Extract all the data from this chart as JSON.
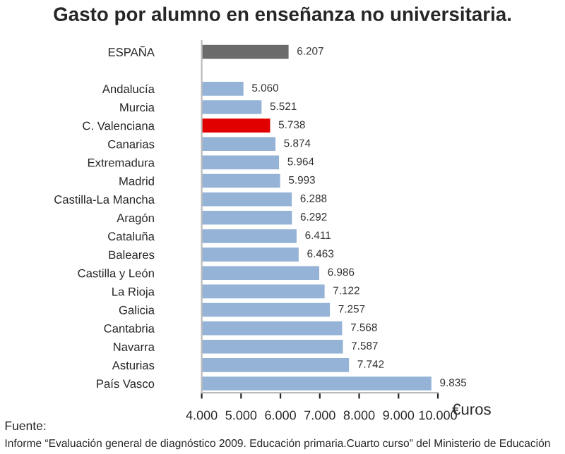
{
  "chart_data": {
    "type": "bar",
    "orientation": "horizontal",
    "title": "Gasto por alumno en enseñanza no universitaria.",
    "xlabel": "€uros",
    "categories": [
      "ESPAÑA",
      null,
      "Andalucía",
      "Murcia",
      "C. Valenciana",
      "Canarias",
      "Extremadura",
      "Madrid",
      "Castilla-La Mancha",
      "Aragón",
      "Cataluña",
      "Baleares",
      "Castilla y León",
      "La Rioja",
      "Galicia",
      "Cantabria",
      "Navarra",
      "Asturias",
      "País Vasco"
    ],
    "values": [
      6207,
      null,
      5060,
      5521,
      5738,
      5874,
      5964,
      5993,
      6288,
      6292,
      6411,
      6463,
      6986,
      7122,
      7257,
      7568,
      7587,
      7742,
      9835
    ],
    "value_labels": [
      "6.207",
      null,
      "5.060",
      "5.521",
      "5.738",
      "5.874",
      "5.964",
      "5.993",
      "6.288",
      "6.292",
      "6.411",
      "6.463",
      "6.986",
      "7.122",
      "7.257",
      "7.568",
      "7.587",
      "7.742",
      "9.835"
    ],
    "colors": [
      "#6b6b6b",
      null,
      "#95b3d7",
      "#95b3d7",
      "#e00000",
      "#95b3d7",
      "#95b3d7",
      "#95b3d7",
      "#95b3d7",
      "#95b3d7",
      "#95b3d7",
      "#95b3d7",
      "#95b3d7",
      "#95b3d7",
      "#95b3d7",
      "#95b3d7",
      "#95b3d7",
      "#95b3d7",
      "#95b3d7"
    ],
    "xlim": [
      4000,
      10000
    ],
    "xticks": [
      {
        "value": 4000,
        "label": "4.000"
      },
      {
        "value": 5000,
        "label": "5.000"
      },
      {
        "value": 6000,
        "label": "6.000"
      },
      {
        "value": 7000,
        "label": "7.000"
      },
      {
        "value": 8000,
        "label": "8.000"
      },
      {
        "value": 9000,
        "label": "9.000"
      },
      {
        "value": 10000,
        "label": "10.000"
      }
    ],
    "grid": false,
    "annotations": [
      "Fuente:",
      "Informe “Evaluación general de diagnóstico 2009. Educación primaria.Cuarto curso” del Ministerio de Educación"
    ]
  }
}
